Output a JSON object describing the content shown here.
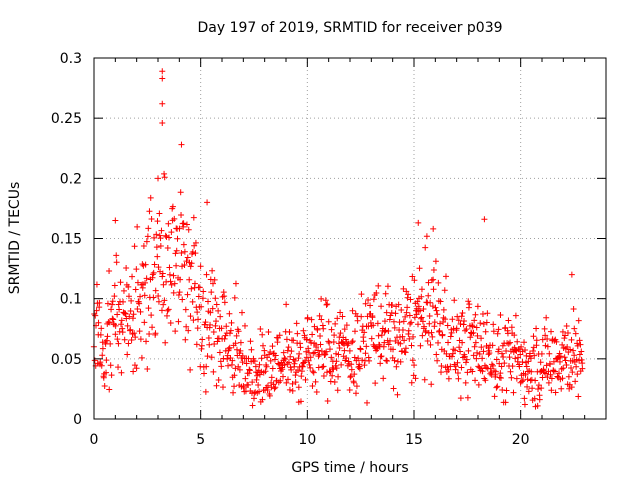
{
  "chart_data": {
    "type": "scatter",
    "title": "Day 197 of 2019, SRMTID for receiver p039",
    "xlabel": "GPS time / hours",
    "ylabel": "SRMTID / TECUs",
    "xlim": [
      0,
      24
    ],
    "ylim": [
      0,
      0.3
    ],
    "x_ticks": [
      0,
      5,
      10,
      15,
      20
    ],
    "y_ticks": [
      0,
      0.05,
      0.1,
      0.15,
      0.2,
      0.25,
      0.3
    ],
    "x_tick_labels": [
      "0",
      "5",
      "10",
      "15",
      "20"
    ],
    "y_tick_labels": [
      "0",
      "0.05",
      "0.1",
      "0.15",
      "0.2",
      "0.25",
      "0.3"
    ],
    "grid": true,
    "legend": "none",
    "marker": "+",
    "marker_color": "#ff0000",
    "x_range_of_data": [
      0,
      22.9
    ],
    "series": [
      {
        "name": "SRMTID",
        "profile": [
          [
            0.0,
            0.07
          ],
          [
            0.5,
            0.065
          ],
          [
            1.0,
            0.08
          ],
          [
            1.5,
            0.09
          ],
          [
            2.0,
            0.095
          ],
          [
            2.5,
            0.11
          ],
          [
            3.0,
            0.125
          ],
          [
            3.5,
            0.13
          ],
          [
            4.0,
            0.13
          ],
          [
            4.5,
            0.12
          ],
          [
            5.0,
            0.09
          ],
          [
            5.5,
            0.08
          ],
          [
            6.0,
            0.075
          ],
          [
            6.5,
            0.065
          ],
          [
            7.0,
            0.05
          ],
          [
            7.5,
            0.04
          ],
          [
            8.0,
            0.04
          ],
          [
            8.5,
            0.045
          ],
          [
            9.0,
            0.05
          ],
          [
            9.5,
            0.05
          ],
          [
            10.0,
            0.055
          ],
          [
            10.5,
            0.06
          ],
          [
            11.0,
            0.06
          ],
          [
            11.5,
            0.06
          ],
          [
            12.0,
            0.055
          ],
          [
            12.5,
            0.06
          ],
          [
            13.0,
            0.075
          ],
          [
            13.5,
            0.07
          ],
          [
            14.0,
            0.065
          ],
          [
            14.5,
            0.07
          ],
          [
            15.0,
            0.08
          ],
          [
            15.5,
            0.085
          ],
          [
            16.0,
            0.085
          ],
          [
            16.5,
            0.07
          ],
          [
            17.0,
            0.06
          ],
          [
            17.5,
            0.06
          ],
          [
            18.0,
            0.06
          ],
          [
            18.5,
            0.055
          ],
          [
            19.0,
            0.05
          ],
          [
            19.5,
            0.05
          ],
          [
            20.0,
            0.05
          ],
          [
            20.5,
            0.045
          ],
          [
            21.0,
            0.045
          ],
          [
            21.5,
            0.05
          ],
          [
            22.0,
            0.055
          ],
          [
            22.5,
            0.055
          ],
          [
            22.9,
            0.04
          ]
        ],
        "peaks": [
          {
            "x": 3.2,
            "y": 0.289
          },
          {
            "x": 3.2,
            "y": 0.283
          },
          {
            "x": 3.2,
            "y": 0.262
          },
          {
            "x": 3.2,
            "y": 0.246
          },
          {
            "x": 4.1,
            "y": 0.228
          },
          {
            "x": 3.0,
            "y": 0.2
          },
          {
            "x": 5.3,
            "y": 0.18
          },
          {
            "x": 1.0,
            "y": 0.165
          },
          {
            "x": 15.2,
            "y": 0.163
          },
          {
            "x": 18.3,
            "y": 0.166
          },
          {
            "x": 15.9,
            "y": 0.158
          },
          {
            "x": 22.4,
            "y": 0.12
          },
          {
            "x": 9.6,
            "y": 0.014
          },
          {
            "x": 20.2,
            "y": 0.012
          }
        ]
      }
    ]
  }
}
